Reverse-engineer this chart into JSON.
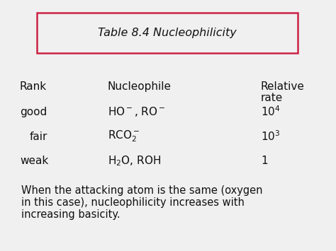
{
  "title": "Table 8.4 Nucleophilicity",
  "bg_color": "#f0f0f0",
  "box_color": "#cc2244",
  "title_fontsize": 11.5,
  "col1_header": "Rank",
  "col2_header": "Nucleophile",
  "col3_header_line1": "Relative",
  "col3_header_line2": "rate",
  "footnote_line1": "When the attacking atom is the same (oxygen",
  "footnote_line2": "in this case), nucleophilicity increases with",
  "footnote_line3": "increasing basicity.",
  "text_color": "#111111",
  "body_fontsize": 11,
  "footnote_fontsize": 10.5,
  "fig_width": 4.74,
  "fig_height": 3.55,
  "dpi": 100
}
